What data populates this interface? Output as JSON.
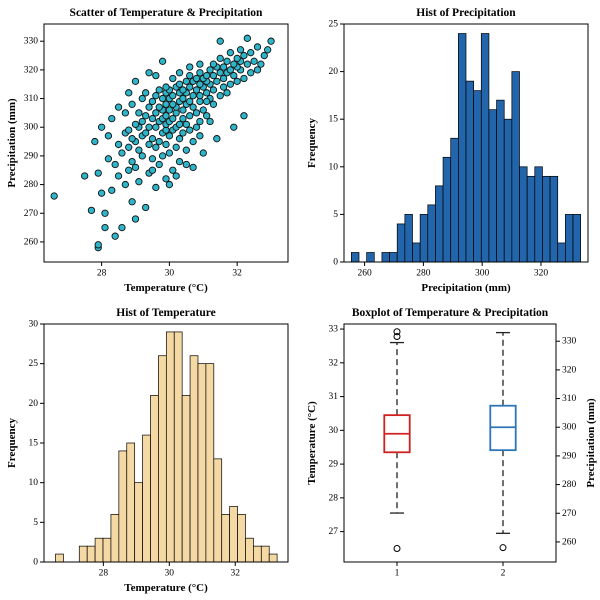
{
  "figure": {
    "background": "#ffffff"
  },
  "chart_data": [
    {
      "id": "scatter-temp-precip",
      "type": "scatter",
      "title": "Scatter of Temperature & Precipitation",
      "xlabel": "Temperature (°C)",
      "ylabel": "Precipitation (mm)",
      "xlim": [
        26.3,
        33.5
      ],
      "ylim": [
        253,
        336
      ],
      "xticks": [
        28,
        30,
        32
      ],
      "yticks": [
        260,
        270,
        280,
        290,
        300,
        310,
        320,
        330
      ],
      "marker": {
        "fill": "#2eb5c9",
        "edge": "#111111",
        "radius": 3.2
      },
      "points": [
        [
          27.9,
          258
        ],
        [
          28.4,
          262
        ],
        [
          28.6,
          265
        ],
        [
          29.0,
          268
        ],
        [
          28.1,
          270
        ],
        [
          29.3,
          272
        ],
        [
          27.7,
          271
        ],
        [
          28.9,
          274
        ],
        [
          26.6,
          276
        ],
        [
          28.0,
          277
        ],
        [
          28.3,
          278
        ],
        [
          29.6,
          279
        ],
        [
          28.7,
          280
        ],
        [
          29.1,
          281
        ],
        [
          29.9,
          282
        ],
        [
          28.5,
          283
        ],
        [
          27.9,
          284
        ],
        [
          29.4,
          284
        ],
        [
          28.8,
          285
        ],
        [
          30.1,
          285
        ],
        [
          29.0,
          286
        ],
        [
          29.7,
          287
        ],
        [
          28.4,
          287
        ],
        [
          30.3,
          288
        ],
        [
          28.9,
          288
        ],
        [
          29.5,
          289
        ],
        [
          28.2,
          289
        ],
        [
          29.8,
          290
        ],
        [
          29.2,
          290
        ],
        [
          30.0,
          291
        ],
        [
          28.6,
          291
        ],
        [
          30.5,
          292
        ],
        [
          29.1,
          292
        ],
        [
          29.6,
          293
        ],
        [
          28.8,
          293
        ],
        [
          30.2,
          293
        ],
        [
          29.4,
          294
        ],
        [
          29.9,
          294
        ],
        [
          28.5,
          294
        ],
        [
          30.7,
          295
        ],
        [
          29.0,
          295
        ],
        [
          29.7,
          295
        ],
        [
          30.3,
          296
        ],
        [
          28.9,
          296
        ],
        [
          29.5,
          296
        ],
        [
          30.0,
          297
        ],
        [
          29.2,
          297
        ],
        [
          30.9,
          297
        ],
        [
          28.7,
          298
        ],
        [
          29.8,
          298
        ],
        [
          30.4,
          298
        ],
        [
          29.3,
          298
        ],
        [
          29.9,
          299
        ],
        [
          30.1,
          299
        ],
        [
          28.8,
          299
        ],
        [
          30.6,
          299
        ],
        [
          29.1,
          300
        ],
        [
          29.6,
          300
        ],
        [
          30.2,
          300
        ],
        [
          29.4,
          300
        ],
        [
          30.8,
          300
        ],
        [
          29.9,
          301
        ],
        [
          30.3,
          301
        ],
        [
          29.0,
          301
        ],
        [
          30.5,
          301
        ],
        [
          29.7,
          302
        ],
        [
          30.0,
          302
        ],
        [
          29.2,
          302
        ],
        [
          30.9,
          302
        ],
        [
          29.5,
          303
        ],
        [
          30.4,
          303
        ],
        [
          29.8,
          303
        ],
        [
          30.1,
          303
        ],
        [
          31.1,
          304
        ],
        [
          29.3,
          304
        ],
        [
          30.6,
          304
        ],
        [
          29.9,
          304
        ],
        [
          30.2,
          305
        ],
        [
          29.6,
          305
        ],
        [
          30.8,
          305
        ],
        [
          29.1,
          305
        ],
        [
          30.4,
          306
        ],
        [
          29.8,
          306
        ],
        [
          31.0,
          306
        ],
        [
          30.0,
          306
        ],
        [
          29.4,
          307
        ],
        [
          30.7,
          307
        ],
        [
          30.2,
          307
        ],
        [
          29.7,
          307
        ],
        [
          31.3,
          308
        ],
        [
          30.5,
          308
        ],
        [
          29.9,
          308
        ],
        [
          30.1,
          308
        ],
        [
          28.9,
          308
        ],
        [
          30.9,
          309
        ],
        [
          30.3,
          309
        ],
        [
          29.5,
          309
        ],
        [
          30.6,
          309
        ],
        [
          30.0,
          310
        ],
        [
          31.2,
          310
        ],
        [
          29.8,
          310
        ],
        [
          30.4,
          310
        ],
        [
          29.2,
          310
        ],
        [
          31.5,
          311
        ],
        [
          30.7,
          311
        ],
        [
          30.1,
          311
        ],
        [
          29.6,
          311
        ],
        [
          30.9,
          311
        ],
        [
          30.3,
          312
        ],
        [
          31.1,
          312
        ],
        [
          29.9,
          312
        ],
        [
          30.5,
          312
        ],
        [
          31.7,
          312
        ],
        [
          30.0,
          313
        ],
        [
          30.8,
          313
        ],
        [
          29.7,
          313
        ],
        [
          31.3,
          313
        ],
        [
          30.4,
          313
        ],
        [
          31.0,
          314
        ],
        [
          30.2,
          314
        ],
        [
          31.6,
          314
        ],
        [
          29.9,
          314
        ],
        [
          30.6,
          314
        ],
        [
          31.2,
          315
        ],
        [
          30.9,
          315
        ],
        [
          30.3,
          315
        ],
        [
          31.8,
          315
        ],
        [
          30.7,
          316
        ],
        [
          31.1,
          316
        ],
        [
          30.5,
          316
        ],
        [
          32.0,
          316
        ],
        [
          31.4,
          316
        ],
        [
          30.8,
          317
        ],
        [
          31.6,
          317
        ],
        [
          31.0,
          317
        ],
        [
          32.2,
          317
        ],
        [
          31.3,
          318
        ],
        [
          30.6,
          318
        ],
        [
          31.9,
          318
        ],
        [
          31.1,
          318
        ],
        [
          32.4,
          319
        ],
        [
          31.5,
          319
        ],
        [
          30.9,
          319
        ],
        [
          31.7,
          319
        ],
        [
          32.1,
          320
        ],
        [
          31.2,
          320
        ],
        [
          31.8,
          320
        ],
        [
          32.6,
          320
        ],
        [
          31.4,
          321
        ],
        [
          32.0,
          321
        ],
        [
          31.6,
          321
        ],
        [
          32.3,
          322
        ],
        [
          31.9,
          322
        ],
        [
          32.7,
          322
        ],
        [
          31.3,
          322
        ],
        [
          32.1,
          323
        ],
        [
          31.7,
          323
        ],
        [
          32.5,
          323
        ],
        [
          32.0,
          324
        ],
        [
          31.5,
          324
        ],
        [
          32.8,
          325
        ],
        [
          32.2,
          325
        ],
        [
          31.8,
          326
        ],
        [
          32.4,
          326
        ],
        [
          32.9,
          327
        ],
        [
          32.1,
          327
        ],
        [
          30.9,
          322
        ],
        [
          32.6,
          328
        ],
        [
          31.5,
          330
        ],
        [
          32.3,
          331
        ],
        [
          33.0,
          330
        ],
        [
          28.0,
          300
        ],
        [
          28.3,
          303
        ],
        [
          27.8,
          295
        ],
        [
          27.5,
          283
        ],
        [
          28.1,
          265
        ],
        [
          30.2,
          283
        ],
        [
          30.7,
          286
        ],
        [
          31.0,
          291
        ],
        [
          31.4,
          296
        ],
        [
          31.9,
          300
        ],
        [
          32.2,
          304
        ],
        [
          30.5,
          287
        ],
        [
          30.0,
          280
        ],
        [
          29.3,
          312
        ],
        [
          29.0,
          316
        ],
        [
          28.7,
          305
        ],
        [
          29.6,
          318
        ],
        [
          28.2,
          297
        ],
        [
          28.5,
          307
        ],
        [
          29.8,
          323
        ],
        [
          29.4,
          319
        ],
        [
          30.1,
          317
        ],
        [
          30.6,
          321
        ],
        [
          27.9,
          259
        ],
        [
          28.8,
          312
        ],
        [
          31.1,
          309
        ],
        [
          30.3,
          319
        ],
        [
          29.5,
          285
        ],
        [
          31.2,
          302
        ]
      ]
    },
    {
      "id": "hist-precipitation",
      "type": "bar",
      "title": "Hist of Precipitation",
      "xlabel": "Precipitation (mm)",
      "ylabel": "Frequency",
      "bin_start": 255.5,
      "bin_width": 2.6,
      "values": [
        1,
        0,
        1,
        0,
        1,
        1,
        4,
        5,
        2,
        5,
        6,
        8,
        11,
        13,
        24,
        19,
        18,
        24,
        16,
        17,
        15,
        20,
        10,
        9,
        10,
        9,
        9,
        2,
        5,
        5
      ],
      "xlim": [
        253,
        336
      ],
      "ylim": [
        0,
        25
      ],
      "xticks": [
        260,
        280,
        300,
        320
      ],
      "yticks": [
        0,
        5,
        10,
        15,
        20,
        25
      ],
      "bar_fill": "#2265ab",
      "bar_edge": "#000000"
    },
    {
      "id": "hist-temperature",
      "type": "bar",
      "title": "Hist of Temperature",
      "xlabel": "Temperature (°C)",
      "ylabel": "Frequency",
      "bin_start": 26.55,
      "bin_width": 0.24,
      "values": [
        1,
        0,
        0,
        2,
        2,
        3,
        3,
        6,
        14,
        15,
        10,
        16,
        21,
        26,
        29,
        29,
        21,
        26,
        25,
        25,
        13,
        6,
        7,
        6,
        3,
        2,
        2,
        1
      ],
      "xlim": [
        26.2,
        33.6
      ],
      "ylim": [
        0,
        30
      ],
      "xticks": [
        28,
        30,
        32
      ],
      "yticks": [
        0,
        5,
        10,
        15,
        20,
        25,
        30
      ],
      "bar_fill": "#f5d9a4",
      "bar_edge": "#000000"
    },
    {
      "id": "boxplot-temp-precip",
      "type": "boxplot",
      "title": "Boxplot of Temperature & Precipitation",
      "ylabel_left": "Temperature (°C)",
      "ylabel_right": "Precipitation (mm)",
      "xlim": [
        0.5,
        2.5
      ],
      "xticks": [
        1,
        2
      ],
      "left_ylim": [
        26.1,
        33.15
      ],
      "left_yticks": [
        27,
        28,
        29,
        30,
        31,
        32,
        33
      ],
      "right_ylim": [
        253,
        336
      ],
      "right_yticks": [
        260,
        270,
        280,
        290,
        300,
        310,
        320,
        330
      ],
      "boxes": [
        {
          "pos": 1,
          "axis": "left",
          "color": "#d02121",
          "q1": 29.35,
          "median": 29.9,
          "q3": 30.45,
          "whisker_low": 27.55,
          "whisker_high": 32.6,
          "outliers": [
            32.78,
            32.92,
            26.5
          ]
        },
        {
          "pos": 2,
          "axis": "right",
          "color": "#2e75b6",
          "q1": 292,
          "median": 300,
          "q3": 307.5,
          "whisker_low": 263,
          "whisker_high": 333,
          "outliers": [
            258
          ]
        }
      ]
    }
  ]
}
